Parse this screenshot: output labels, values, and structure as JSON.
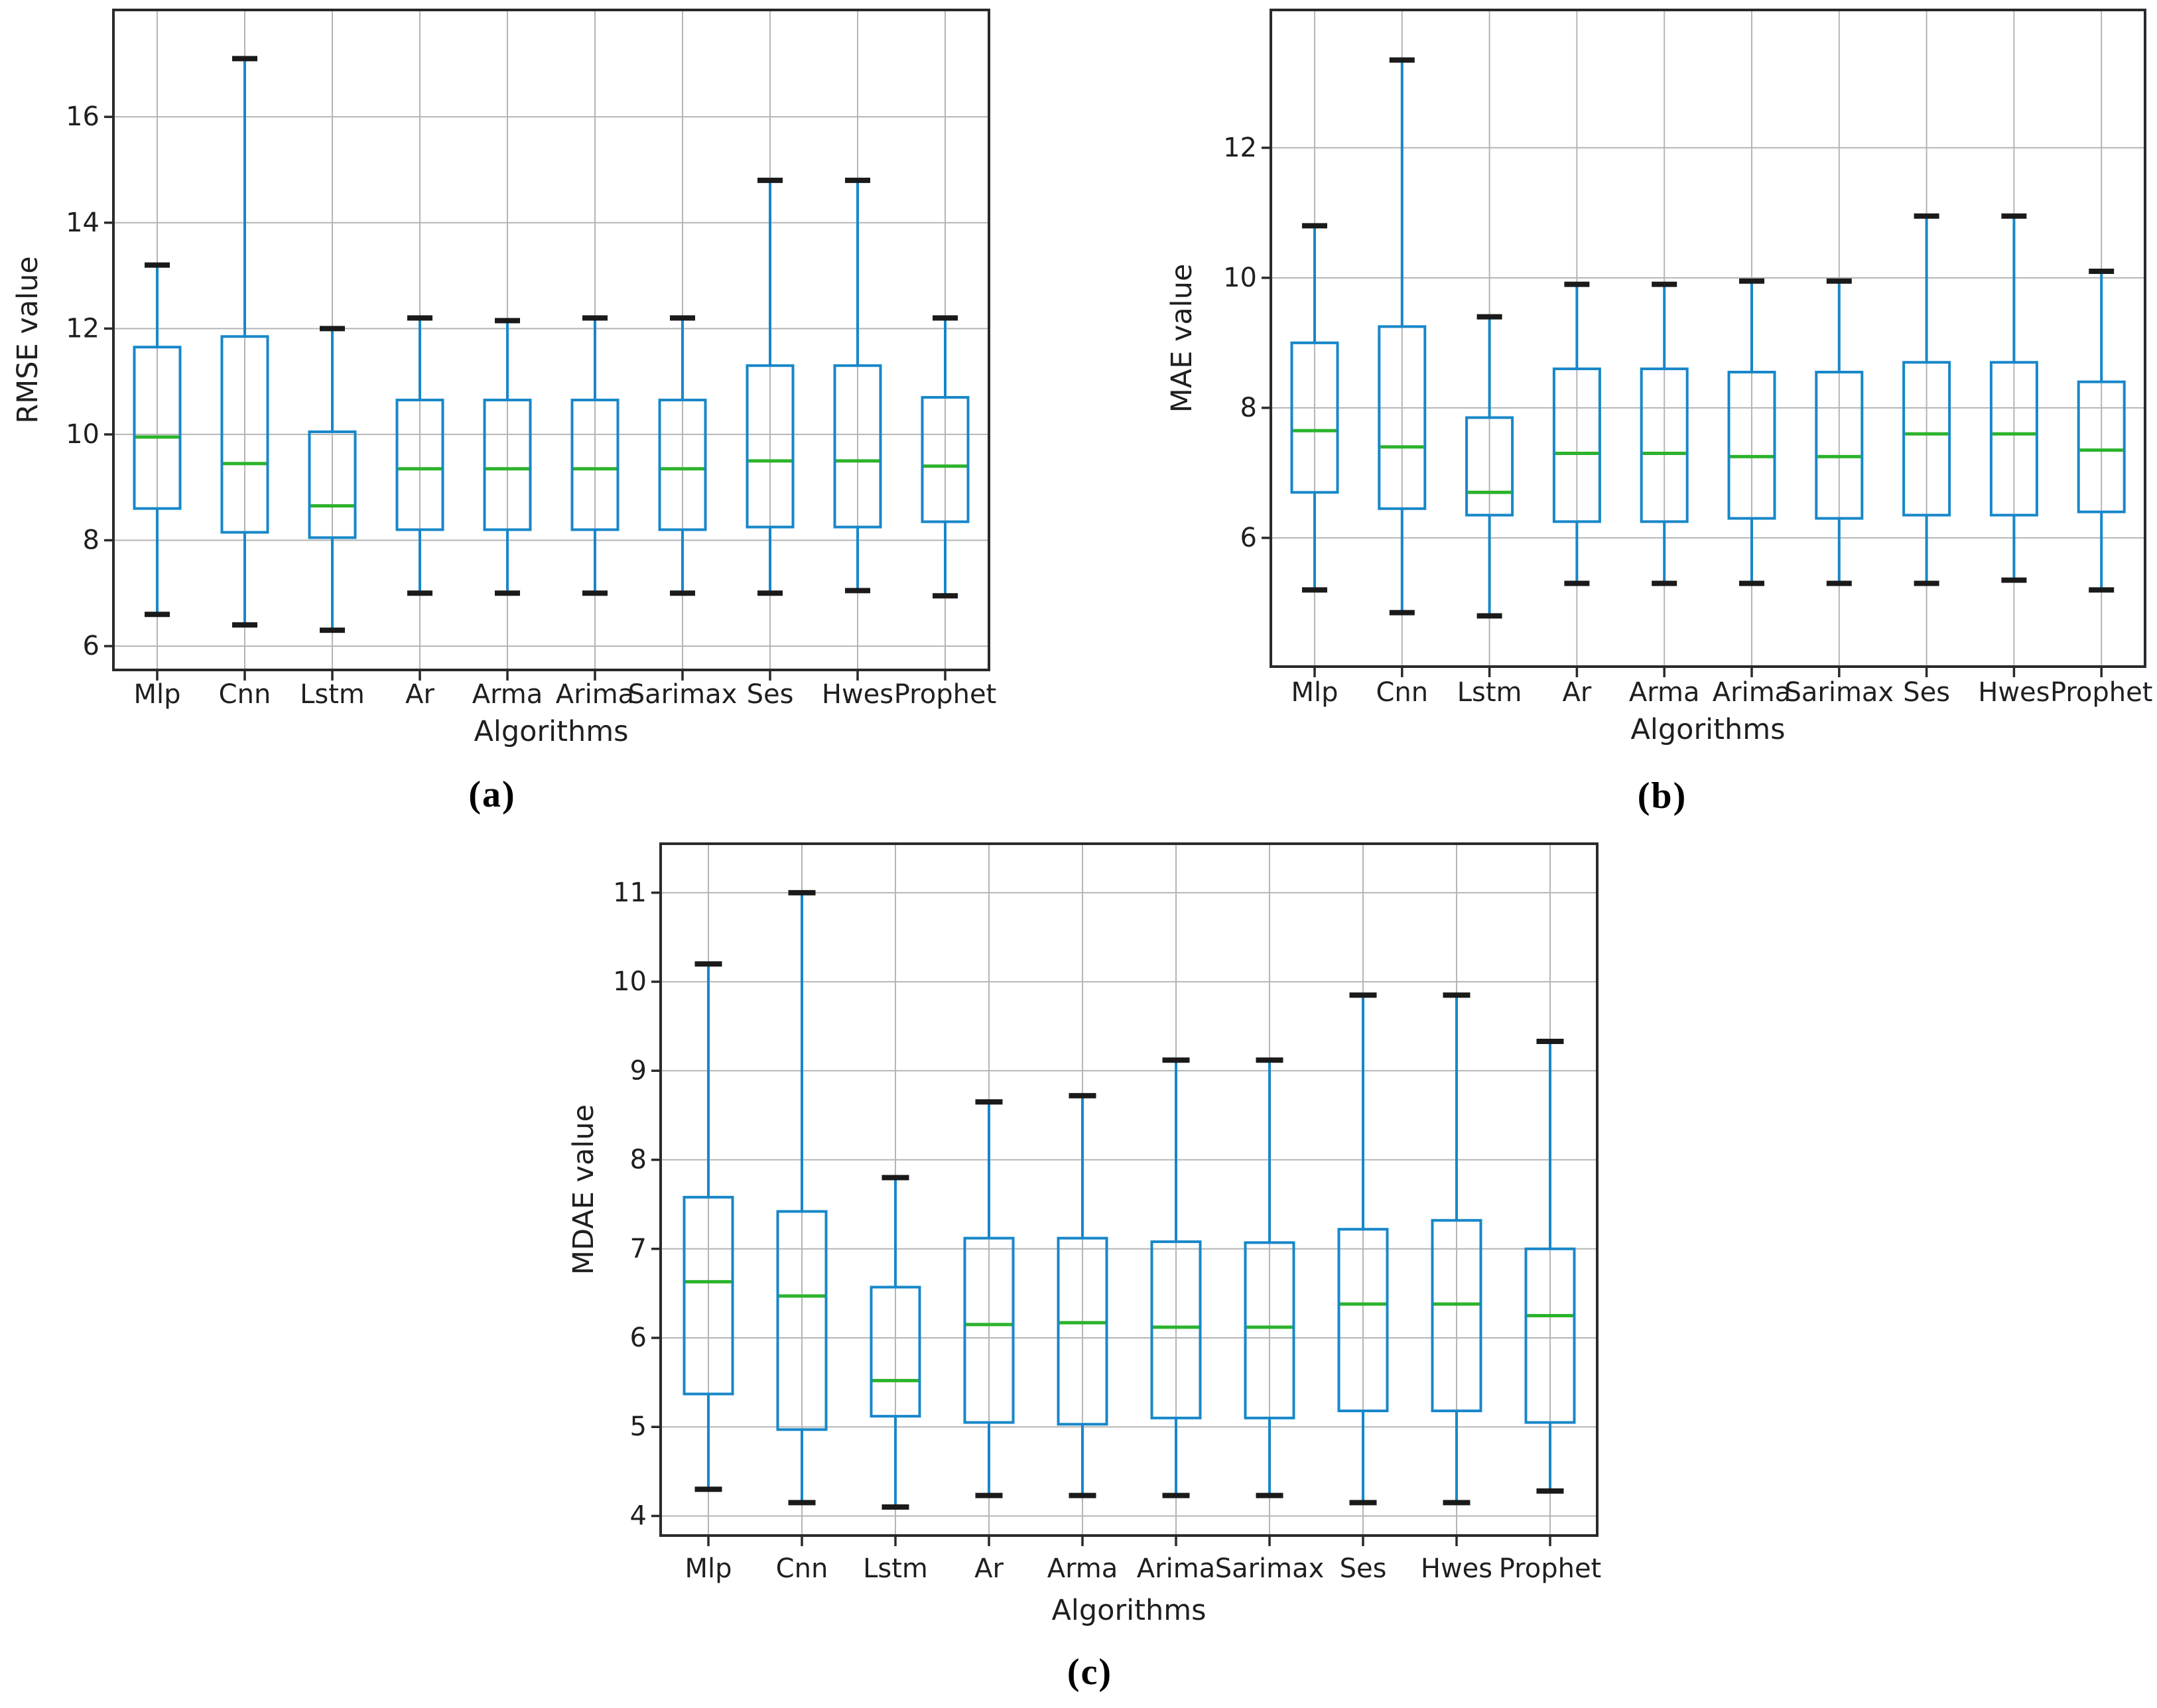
{
  "colors": {
    "box_line": "#1787c9",
    "median_line": "#2bb32b",
    "whisker_cap": "#1a1a1a",
    "grid_line": "#b5b5b5",
    "spine": "#2a2a2a",
    "text": "#1f1f1f",
    "background": "#ffffff"
  },
  "chart_data": [
    {
      "type": "box",
      "sublabel": "(a)",
      "xlabel": "Algorithms",
      "ylabel": "RMSE value",
      "grid": true,
      "legend": "none",
      "categories": [
        "Mlp",
        "Cnn",
        "Lstm",
        "Ar",
        "Arma",
        "Arima",
        "Sarimax",
        "Ses",
        "Hwes",
        "Prophet"
      ],
      "yticks": [
        6,
        8,
        10,
        12,
        14,
        16
      ],
      "ylim": [
        5.55,
        18.02
      ],
      "boxes": [
        {
          "label": "Mlp",
          "whislo": 6.6,
          "q1": 8.6,
          "med": 9.95,
          "q3": 11.65,
          "whishi": 13.2
        },
        {
          "label": "Cnn",
          "whislo": 6.4,
          "q1": 8.15,
          "med": 9.45,
          "q3": 11.85,
          "whishi": 17.1
        },
        {
          "label": "Lstm",
          "whislo": 6.3,
          "q1": 8.05,
          "med": 8.65,
          "q3": 10.05,
          "whishi": 12.0
        },
        {
          "label": "Ar",
          "whislo": 7.0,
          "q1": 8.2,
          "med": 9.35,
          "q3": 10.65,
          "whishi": 12.2
        },
        {
          "label": "Arma",
          "whislo": 7.0,
          "q1": 8.2,
          "med": 9.35,
          "q3": 10.65,
          "whishi": 12.15
        },
        {
          "label": "Arima",
          "whislo": 7.0,
          "q1": 8.2,
          "med": 9.35,
          "q3": 10.65,
          "whishi": 12.2
        },
        {
          "label": "Sarimax",
          "whislo": 7.0,
          "q1": 8.2,
          "med": 9.35,
          "q3": 10.65,
          "whishi": 12.2
        },
        {
          "label": "Ses",
          "whislo": 7.0,
          "q1": 8.25,
          "med": 9.5,
          "q3": 11.3,
          "whishi": 14.8
        },
        {
          "label": "Hwes",
          "whislo": 7.05,
          "q1": 8.25,
          "med": 9.5,
          "q3": 11.3,
          "whishi": 14.8
        },
        {
          "label": "Prophet",
          "whislo": 6.95,
          "q1": 8.35,
          "med": 9.4,
          "q3": 10.7,
          "whishi": 12.2
        }
      ]
    },
    {
      "type": "box",
      "sublabel": "(b)",
      "xlabel": "Algorithms",
      "ylabel": "MAE value",
      "grid": true,
      "legend": "none",
      "categories": [
        "Mlp",
        "Cnn",
        "Lstm",
        "Ar",
        "Arma",
        "Arima",
        "Sarimax",
        "Ses",
        "Hwes",
        "Prophet"
      ],
      "yticks": [
        6,
        8,
        10,
        12
      ],
      "ylim": [
        4.02,
        14.12
      ],
      "boxes": [
        {
          "label": "Mlp",
          "whislo": 5.2,
          "q1": 6.7,
          "med": 7.65,
          "q3": 9.0,
          "whishi": 10.8
        },
        {
          "label": "Cnn",
          "whislo": 4.85,
          "q1": 6.45,
          "med": 7.4,
          "q3": 9.25,
          "whishi": 13.35
        },
        {
          "label": "Lstm",
          "whislo": 4.8,
          "q1": 6.35,
          "med": 6.7,
          "q3": 7.85,
          "whishi": 9.4
        },
        {
          "label": "Ar",
          "whislo": 5.3,
          "q1": 6.25,
          "med": 7.3,
          "q3": 8.6,
          "whishi": 9.9
        },
        {
          "label": "Arma",
          "whislo": 5.3,
          "q1": 6.25,
          "med": 7.3,
          "q3": 8.6,
          "whishi": 9.9
        },
        {
          "label": "Arima",
          "whislo": 5.3,
          "q1": 6.3,
          "med": 7.25,
          "q3": 8.55,
          "whishi": 9.95
        },
        {
          "label": "Sarimax",
          "whislo": 5.3,
          "q1": 6.3,
          "med": 7.25,
          "q3": 8.55,
          "whishi": 9.95
        },
        {
          "label": "Ses",
          "whislo": 5.3,
          "q1": 6.35,
          "med": 7.6,
          "q3": 8.7,
          "whishi": 10.95
        },
        {
          "label": "Hwes",
          "whislo": 5.35,
          "q1": 6.35,
          "med": 7.6,
          "q3": 8.7,
          "whishi": 10.95
        },
        {
          "label": "Prophet",
          "whislo": 5.2,
          "q1": 6.4,
          "med": 7.35,
          "q3": 8.4,
          "whishi": 10.1
        }
      ]
    },
    {
      "type": "box",
      "sublabel": "(c)",
      "xlabel": "Algorithms",
      "ylabel": "MDAE value",
      "grid": true,
      "legend": "none",
      "categories": [
        "Mlp",
        "Cnn",
        "Lstm",
        "Ar",
        "Arma",
        "Arima",
        "Sarimax",
        "Ses",
        "Hwes",
        "Prophet"
      ],
      "yticks": [
        4,
        5,
        6,
        7,
        8,
        9,
        10,
        11
      ],
      "ylim": [
        3.78,
        11.55
      ],
      "boxes": [
        {
          "label": "Mlp",
          "whislo": 4.3,
          "q1": 5.37,
          "med": 6.63,
          "q3": 7.58,
          "whishi": 10.2
        },
        {
          "label": "Cnn",
          "whislo": 4.15,
          "q1": 4.97,
          "med": 6.47,
          "q3": 7.42,
          "whishi": 11.0
        },
        {
          "label": "Lstm",
          "whislo": 4.1,
          "q1": 5.12,
          "med": 5.52,
          "q3": 6.57,
          "whishi": 7.8
        },
        {
          "label": "Ar",
          "whislo": 4.23,
          "q1": 5.05,
          "med": 6.15,
          "q3": 7.12,
          "whishi": 8.65
        },
        {
          "label": "Arma",
          "whislo": 4.23,
          "q1": 5.03,
          "med": 6.17,
          "q3": 7.12,
          "whishi": 8.72
        },
        {
          "label": "Arima",
          "whislo": 4.23,
          "q1": 5.1,
          "med": 6.12,
          "q3": 7.08,
          "whishi": 9.12
        },
        {
          "label": "Sarimax",
          "whislo": 4.23,
          "q1": 5.1,
          "med": 6.12,
          "q3": 7.07,
          "whishi": 9.12
        },
        {
          "label": "Ses",
          "whislo": 4.15,
          "q1": 5.18,
          "med": 6.38,
          "q3": 7.22,
          "whishi": 9.85
        },
        {
          "label": "Hwes",
          "whislo": 4.15,
          "q1": 5.18,
          "med": 6.38,
          "q3": 7.32,
          "whishi": 9.85
        },
        {
          "label": "Prophet",
          "whislo": 4.28,
          "q1": 5.05,
          "med": 6.25,
          "q3": 7.0,
          "whishi": 9.33
        }
      ]
    }
  ]
}
